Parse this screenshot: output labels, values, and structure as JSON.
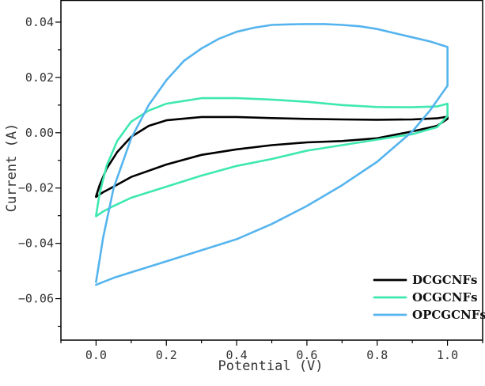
{
  "chart_data": {
    "type": "line",
    "xlabel": "Potential (V)",
    "ylabel": "Current (A)",
    "xlim": [
      -0.1,
      1.1
    ],
    "ylim": [
      -0.075,
      0.048
    ],
    "x_ticks": [
      0.0,
      0.2,
      0.4,
      0.6,
      0.8,
      1.0
    ],
    "x_tick_labels": [
      "0.0",
      "0.2",
      "0.4",
      "0.6",
      "0.8",
      "1.0"
    ],
    "y_ticks": [
      -0.06,
      -0.04,
      -0.02,
      0.0,
      0.02,
      0.04
    ],
    "y_tick_labels": [
      "−0.06",
      "−0.04",
      "−0.02",
      "0.00",
      "0.02",
      "0.04"
    ],
    "grid": false,
    "legend_position": "bottom-right",
    "series": [
      {
        "name": "DCGCNFs",
        "color": "#000000",
        "x": [
          0.0,
          0.01,
          0.03,
          0.06,
          0.1,
          0.15,
          0.2,
          0.3,
          0.4,
          0.5,
          0.6,
          0.7,
          0.8,
          0.9,
          0.97,
          1.0,
          1.0,
          0.97,
          0.9,
          0.8,
          0.7,
          0.6,
          0.5,
          0.4,
          0.3,
          0.2,
          0.1,
          0.05,
          0.02,
          0.0
        ],
        "y": [
          -0.023,
          -0.019,
          -0.013,
          -0.007,
          -0.0015,
          0.0025,
          0.0045,
          0.0057,
          0.0057,
          0.0053,
          0.005,
          0.0048,
          0.0047,
          0.0048,
          0.0052,
          0.0058,
          0.005,
          0.0025,
          0.0005,
          -0.002,
          -0.003,
          -0.0035,
          -0.0045,
          -0.006,
          -0.008,
          -0.0115,
          -0.016,
          -0.0195,
          -0.0215,
          -0.0232
        ]
      },
      {
        "name": "OCGCNFs",
        "color": "#3ee8b0",
        "x": [
          0.0,
          0.01,
          0.03,
          0.06,
          0.1,
          0.15,
          0.2,
          0.3,
          0.4,
          0.5,
          0.6,
          0.7,
          0.8,
          0.9,
          0.97,
          1.0,
          1.0,
          0.97,
          0.9,
          0.8,
          0.7,
          0.6,
          0.5,
          0.4,
          0.3,
          0.2,
          0.1,
          0.05,
          0.02,
          0.0
        ],
        "y": [
          -0.03,
          -0.022,
          -0.012,
          -0.003,
          0.004,
          0.008,
          0.0105,
          0.0125,
          0.0125,
          0.012,
          0.0112,
          0.01,
          0.0093,
          0.0092,
          0.0095,
          0.0105,
          0.006,
          0.002,
          -0.0005,
          -0.0025,
          -0.0045,
          -0.0065,
          -0.0095,
          -0.012,
          -0.0155,
          -0.0195,
          -0.0235,
          -0.0265,
          -0.0285,
          -0.0302
        ]
      },
      {
        "name": "OPCGCNFs",
        "color": "#55b4ee",
        "x": [
          0.0,
          0.02,
          0.05,
          0.1,
          0.15,
          0.2,
          0.25,
          0.3,
          0.35,
          0.4,
          0.45,
          0.5,
          0.55,
          0.6,
          0.65,
          0.7,
          0.75,
          0.8,
          0.85,
          0.9,
          0.95,
          1.0,
          1.0,
          0.95,
          0.9,
          0.8,
          0.7,
          0.6,
          0.5,
          0.4,
          0.3,
          0.2,
          0.1,
          0.05,
          0.0
        ],
        "y": [
          -0.054,
          -0.038,
          -0.02,
          -0.002,
          0.01,
          0.019,
          0.026,
          0.0305,
          0.034,
          0.0365,
          0.038,
          0.039,
          0.0392,
          0.0393,
          0.0393,
          0.039,
          0.0385,
          0.0375,
          0.036,
          0.0345,
          0.033,
          0.031,
          0.017,
          0.008,
          0.0005,
          -0.0105,
          -0.019,
          -0.0265,
          -0.033,
          -0.0385,
          -0.0425,
          -0.0465,
          -0.0505,
          -0.0525,
          -0.055
        ]
      }
    ]
  }
}
